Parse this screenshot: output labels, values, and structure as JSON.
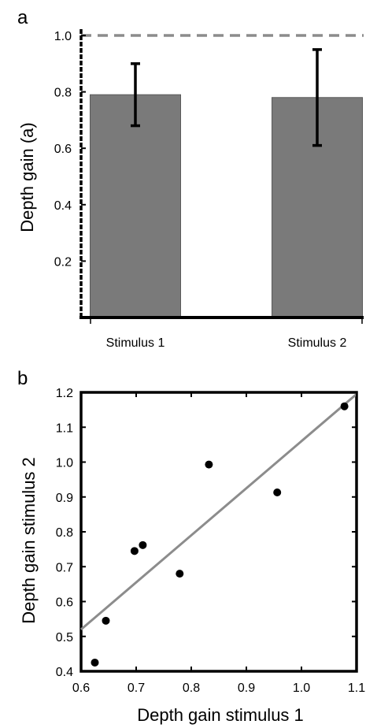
{
  "chart_data": [
    {
      "type": "bar",
      "panel_label": "a",
      "categories": [
        "Stimulus 1",
        "Stimulus 2"
      ],
      "values": [
        0.79,
        0.78
      ],
      "error_low": [
        0.68,
        0.61
      ],
      "error_high": [
        0.9,
        0.95
      ],
      "ylabel": "Depth gain (a)",
      "xlabel": "",
      "ylim": [
        0,
        1.0
      ],
      "yticks": [
        "0.2",
        "0.4",
        "0.6",
        "0.8",
        "1.0"
      ],
      "reference_line": 1.0,
      "colors": {
        "bar": "#7a7a7a",
        "error": "#000000",
        "reference": "#8c8c8c"
      }
    },
    {
      "type": "scatter",
      "panel_label": "b",
      "points": [
        {
          "x": 0.625,
          "y": 0.425
        },
        {
          "x": 0.645,
          "y": 0.545
        },
        {
          "x": 0.697,
          "y": 0.745
        },
        {
          "x": 0.712,
          "y": 0.762
        },
        {
          "x": 0.779,
          "y": 0.68
        },
        {
          "x": 0.832,
          "y": 0.993
        },
        {
          "x": 0.956,
          "y": 0.913
        },
        {
          "x": 1.078,
          "y": 1.16
        }
      ],
      "fit_line": {
        "x": [
          0.6,
          1.1
        ],
        "y": [
          0.52,
          1.195
        ]
      },
      "xlabel": "Depth gain stimulus 1",
      "ylabel": "Depth gain stimulus 2",
      "xlim": [
        0.6,
        1.1
      ],
      "ylim": [
        0.4,
        1.2
      ],
      "xticks": [
        "0.6",
        "0.7",
        "0.8",
        "0.9",
        "1.0",
        "1.1"
      ],
      "yticks": [
        "0.4",
        "0.5",
        "0.6",
        "0.7",
        "0.8",
        "0.9",
        "1.0",
        "1.1",
        "1.2"
      ],
      "colors": {
        "point": "#000000",
        "fit": "#8c8c8c"
      }
    }
  ]
}
